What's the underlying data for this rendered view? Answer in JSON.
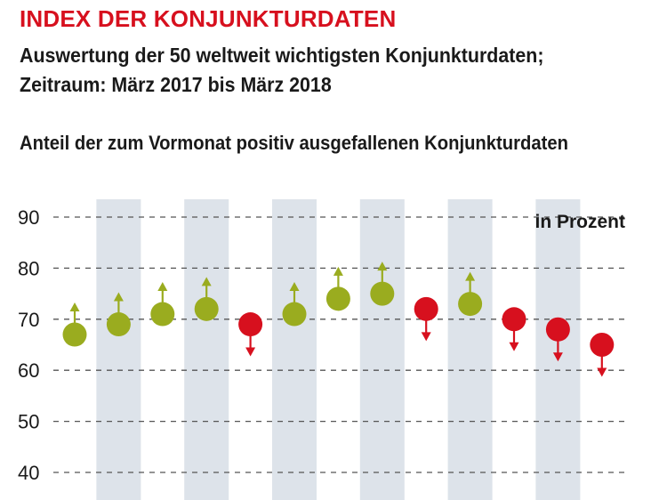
{
  "header": {
    "title": "INDEX DER KONJUNKTURDATEN",
    "subtitle_line1": "Auswertung der 50 weltweit wichtigsten Konjunkturdaten;",
    "subtitle_line2": "Zeitraum: März 2017 bis März 2018"
  },
  "colors": {
    "positive": "#9aac1f",
    "negative": "#d7101e",
    "band": "#dde3ea",
    "grid": "#555555"
  },
  "chart_data": {
    "type": "scatter",
    "title": "Anteil der zum Vormonat positiv ausgefallenen Konjunkturdaten",
    "unit_label": "in Prozent",
    "ylim": [
      40,
      90
    ],
    "yticks": [
      40,
      50,
      60,
      70,
      80,
      90
    ],
    "grid": true,
    "alternating_bands": true,
    "series": [
      {
        "values": [
          67,
          69,
          71,
          72,
          69,
          71,
          74,
          75,
          72,
          73,
          70,
          68,
          65
        ],
        "direction": [
          "up",
          "up",
          "up",
          "up",
          "down",
          "up",
          "up",
          "up",
          "down",
          "up",
          "down",
          "down",
          "down"
        ]
      }
    ]
  }
}
